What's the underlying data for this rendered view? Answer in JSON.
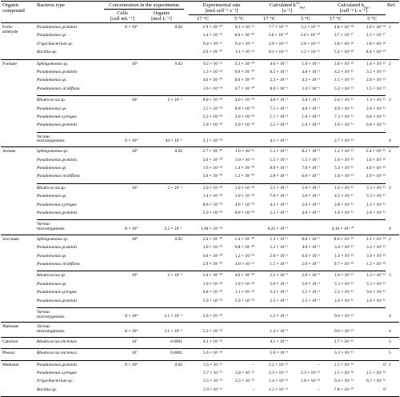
{
  "headers": {
    "organic_compound": [
      "Organic",
      "compound"
    ],
    "bacteria_type": "Bacteria type",
    "concentration": "Concentration in the experiments",
    "cells": [
      "Cells",
      "[cell mL⁻¹]"
    ],
    "organic": [
      "Organic",
      "[mol L⁻¹]"
    ],
    "experimental_rate": [
      "Experimental rate",
      "[mol cell⁻¹ s⁻¹]"
    ],
    "calculated_k1st": [
      "Calculated k",
      "[s⁻¹]"
    ],
    "calculated_k1st_sup": "1st",
    "calculated_k1st_sub": "bact",
    "calculated_kbact": [
      "Calculated k",
      "[cell⁻¹ L s⁻¹]"
    ],
    "calculated_kbact_sub": "bact",
    "ref": "Ref.",
    "t17": "17 °C",
    "t5": "5 °C"
  },
  "rows": [
    {
      "compound": "Form-",
      "compound2": "aldehyde",
      "bact": "Pseudomonas graminis",
      "cells": "8 × 10⁴",
      "org": "0.02",
      "e17": "1.9 × 10⁻²⁰",
      "e5": "8.1 × 10⁻²¹",
      "k17": "7.7 × 10⁻¹¹",
      "k5": "3.2 × 10⁻¹¹",
      "b17": "4.8 × 10⁻¹⁸",
      "b5": "2.0 × 10⁻¹⁸",
      "ref": "1"
    },
    {
      "bact": "Pseudomonas sp.",
      "e17": "1.4 × 10⁻¹⁹",
      "e5": "8.6 × 10⁻²⁰",
      "k17": "5.6 × 10⁻¹⁰",
      "k5": "3.4 × 10⁻¹⁰",
      "b17": "3.7 × 10⁻¹⁷",
      "b5": "2.3 × 10⁻¹⁷"
    },
    {
      "bact": "Frigoribacterium sp.",
      "e17": "6.4 × 10⁻²¹",
      "e5": "6.4 × 10⁻²¹",
      "k17": "2.6 × 10⁻¹¹",
      "k5": "2.6 × 10⁻¹¹",
      "b17": "1.8 × 10⁻¹⁸",
      "b5": "1.8 × 10⁻¹⁸"
    },
    {
      "bact": "Bacillus sp.",
      "e17": "2.0 × 10⁻²⁰",
      "e5": "3.1 × 10⁻²¹",
      "k17": "8.1 × 10⁻¹¹",
      "k5": "1.2 × 10⁻¹¹",
      "b17": "5.4 × 10⁻¹⁸",
      "b5": "8.4 × 10⁻¹⁹"
    },
    {
      "compound": "Formate",
      "bact": "Sphingomonas sp.",
      "cells": "10⁹",
      "org": "0.02",
      "e17": "9.2 × 10⁻²¹",
      "e5": "3.3 × 10⁻²⁰",
      "k17": "4.6 × 10⁻⁷",
      "k5": "1.6 × 10⁻⁶",
      "b17": "3.0 × 10⁻¹⁴",
      "b5": "1.0 × 10⁻¹³",
      "ref": "2"
    },
    {
      "bact": "Pseudomonas graminis",
      "e17": "1.3 × 10⁻¹⁹",
      "e5": "9.6 × 10⁻²⁰",
      "k17": "6.5 × 10⁻⁶",
      "k5": "4.8 × 10⁻⁶",
      "b17": "4.2 × 10⁻¹³",
      "b5": "3.1 × 10⁻¹³"
    },
    {
      "bact": "Pseudomonas sp.",
      "e17": "4.6 × 10⁻²⁰",
      "e5": "8.6 × 10⁻²⁰",
      "k17": "2.3 × 10⁻⁶",
      "k5": "4.3 × 10⁻⁶",
      "b17": "1.5 × 10⁻¹³",
      "b5": "2.8 × 10⁻¹³"
    },
    {
      "bact": "Pseudomonas viridiflava",
      "e17": "1.6 × 10⁻¹⁹",
      "e5": "4.7 × 10⁻²⁰",
      "k17": "8.0 × 10⁻⁶",
      "k5": "2.4 × 10⁻⁶",
      "b17": "5.2 × 10⁻¹³",
      "b5": "1.5 × 10⁻¹³"
    },
    {
      "bact": "Rhodococcus sp.",
      "cells": "10⁶",
      "org": "2 × 10⁻⁵",
      "e17": "8.0 × 10⁻¹⁹",
      "e5": "4.0 × 10⁻¹⁹",
      "k17": "4.0 × 10⁻⁵",
      "k5": "2.0 × 10⁻⁵",
      "b17": "2.6 × 10⁻¹²",
      "b5": "1.3 × 10⁻¹²",
      "ref": "3"
    },
    {
      "bact": "Pseudomonas sp.",
      "e17": "1.5 × 10⁻¹⁸",
      "e5": "8.0 × 10⁻¹⁹",
      "k17": "7.5 × 10⁻⁵",
      "k5": "4.0 × 10⁻⁵",
      "b17": "4.9 × 10⁻¹²",
      "b5": "2.6 × 10⁻¹²"
    },
    {
      "bact": "Pseudomonas syringae",
      "e17": "2.3 × 10⁻¹⁸",
      "e5": "2.0 × 10⁻¹⁸",
      "k17": "1.1 × 10⁻⁴",
      "k5": "1.0 × 10⁻⁴",
      "b17": "7.3 × 10⁻¹²",
      "b5": "6.6 × 10⁻¹²"
    },
    {
      "bact": "Pseudomonas graminis",
      "e17": "5.0 × 10⁻¹⁸",
      "e5": "2.0 × 10⁻¹⁸",
      "k17": "2.5 × 10⁻⁴",
      "k5": "1.0 × 10⁻⁴",
      "b17": "1.6 × 10⁻¹¹",
      "b5": "6.6 × 10⁻¹²"
    },
    {
      "bact": "Various",
      "bact2": "microorganisms",
      "cells": "8 × 10⁴",
      "org": "43 × 10⁻⁶",
      "e17": "2.1 × 10⁻¹⁸",
      "e5": "",
      "k17": "4.1 × 10⁻⁶",
      "k5": "",
      "b17": "2.7 × 10⁻¹³",
      "b5": "",
      "ref": "4"
    },
    {
      "compound": "Acetate",
      "bact": "Sphingomonas sp.",
      "cells": "10⁹",
      "org": "0.02",
      "e17": "2.7 × 10⁻²⁰",
      "e5": "1.6 × 10⁻²²",
      "k17": "1.3 × 10⁻⁶",
      "k5": "8.2 × 10⁻⁹",
      "b17": "1.1 × 10⁻¹³",
      "b5": "5.4 × 10⁻¹⁶",
      "ref": "2"
    },
    {
      "bact": "Pseudomonas graminis",
      "e17": "3.0 × 10⁻²⁰",
      "e5": "3.0 × 10⁻²¹",
      "k17": "1.5 × 10⁻⁶",
      "k5": "1.5 × 10⁻⁷",
      "b17": "1.0 × 10⁻¹³",
      "b5": "1.0 × 10⁻¹⁴"
    },
    {
      "bact": "Pseudomonas sp.",
      "e17": "1.6 × 10⁻¹⁹",
      "e5": "1.4 × 10⁻²⁰",
      "k17": "8.0 × 10⁻⁶",
      "k5": "7.0 × 10⁻⁷",
      "b17": "5.3 × 10⁻¹³",
      "b5": "4.6 × 10⁻¹⁴"
    },
    {
      "bact": "Pseudomonas viridiflava",
      "e17": "5.6 × 10⁻²⁰",
      "e5": "1.2 × 10⁻²⁰",
      "k17": "2.8 × 10⁻⁶",
      "k5": "6.0 × 10⁻⁷",
      "b17": "1.8 × 10⁻¹³",
      "b5": "3.9 × 10⁻¹⁴"
    },
    {
      "bact": "Rhodococcus sp.",
      "cells": "10⁶",
      "org": "2 × 10⁻⁵",
      "e17": "5.0 × 10⁻¹⁹",
      "e5": "1.0 × 10⁻¹⁸",
      "k17": "2.5 × 10⁻⁵",
      "k5": "5.0 × 10⁻⁵",
      "b17": "1.6 × 10⁻¹²",
      "b5": "3.3 × 10⁻¹²",
      "ref": "3"
    },
    {
      "bact": "Pseudomonas sp.",
      "e17": "1.4 × 10⁻¹⁸",
      "e5": "1.0 × 10⁻¹⁸",
      "k17": "7.0 × 10⁻⁵",
      "k5": "5.0 × 10⁻⁵",
      "b17": "4.5 × 10⁻¹²",
      "b5": "3.3 × 10⁻¹²"
    },
    {
      "bact": "Pseudomonas syringae",
      "e17": "8.6 × 10⁻¹⁹",
      "e5": "4.0 × 10⁻¹⁹",
      "k17": "4.3 × 10⁻⁵",
      "k5": "2.0 × 10⁻⁵",
      "b17": "2.8 × 10⁻¹²",
      "b5": "1.3 × 10⁻¹²"
    },
    {
      "bact": "Pseudomonas graminis",
      "e17": "5.0 × 10⁻¹⁹",
      "e5": "8.0 × 10⁻¹⁹",
      "k17": "2.5 × 10⁻⁵",
      "k5": "4.0 × 10⁻⁵",
      "b17": "1.6 × 10⁻¹²",
      "b5": "2.6 × 10⁻¹²"
    },
    {
      "bact": "Various",
      "bact2": "microorganisms",
      "cells": "8 × 10⁴",
      "org": "2.5 × 10⁻⁶",
      "e17": "1.94 × 10⁻¹⁸",
      "e5": "",
      "k17": "6.25 × 10⁻⁵",
      "k5": "",
      "b17": "4.16 × 10⁻¹⁰",
      "b5": "",
      "ref": "4"
    },
    {
      "compound": "Succinate",
      "bact": "Sphingomonas sp.",
      "cells": "10⁹",
      "org": "0.02",
      "e17": "2.6 × 10⁻²⁰",
      "e5": "1.6 × 10⁻²⁰",
      "k17": "1.3 × 10⁻⁶",
      "k5": "8.0 × 10⁻⁷",
      "b17": "8.6 × 10⁻¹⁴",
      "b5": "3.1 × 10⁻¹⁴",
      "ref": "2"
    },
    {
      "bact": "Pseudomonas graminis",
      "e17": "1.0 × 10⁻¹⁹",
      "e5": "9.8 × 10⁻²⁰",
      "k17": "5.2 × 10⁻⁶",
      "k5": "4.9 × 10⁻⁶",
      "b17": "3.4 × 10⁻¹³",
      "b5": "3.2 × 10⁻¹³"
    },
    {
      "bact": "Pseudomonas sp.",
      "e17": "4.0 × 10⁻²⁰",
      "e5": "1.2 × 10⁻¹⁹",
      "k17": "2.0 × 10⁻⁶",
      "k5": "6.0 × 10⁻⁶",
      "b17": "1.3 × 10⁻¹³",
      "b5": "3.9 × 10⁻¹³"
    },
    {
      "bact": "Pseudomonas viridiflava",
      "e17": "2.9 × 10⁻²⁰",
      "e5": "4.0 × 10⁻²¹",
      "k17": "1.5 × 10⁻⁶",
      "k5": "2.0 × 10⁻⁷",
      "b17": "9.7 × 10⁻¹⁴",
      "b5": "1.3 × 10⁻¹⁴"
    },
    {
      "bact": "Rhodococcus sp.",
      "cells": "10⁶",
      "org": "2 × 10⁻⁵",
      "e17": "5.0 × 10⁻²⁰",
      "e5": "4.0 × 10⁻²⁰",
      "k17": "2.5 × 10⁻⁶",
      "k5": "2.0 × 10⁻⁶",
      "b17": "1.6 × 10⁻¹³",
      "b5": "1.3 × 10⁻¹³",
      "ref": "3"
    },
    {
      "bact": "Pseudomonas sp.",
      "e17": "1.0 × 10⁻¹⁸",
      "e5": "1.0 × 10⁻¹⁸",
      "k17": "5.0 × 10⁻⁵",
      "k5": "5.0 × 10⁻⁵",
      "b17": "3.3 × 10⁻¹²",
      "b5": "3.3 × 10⁻¹²"
    },
    {
      "bact": "Pseudomonas syringae",
      "e17": "6.8 × 10⁻¹⁹",
      "e5": "1.1 × 10⁻¹⁸",
      "k17": "3.4 × 10⁻⁵",
      "k5": "5.5 × 10⁻⁵",
      "b17": "2.2 × 10⁻¹²",
      "b5": "3.6 × 10⁻¹²"
    },
    {
      "bact": "Pseudomonas graminis",
      "e17": "5.0 × 10⁻¹⁹",
      "e5": "5.0 × 10⁻¹⁹",
      "k17": "2.5 × 10⁻⁵",
      "k5": "2.5 × 10⁻⁵",
      "b17": "1.6 × 10⁻¹²",
      "b5": "1.6 × 10⁻¹²"
    },
    {
      "bact": "Various",
      "bact2": "microorganisms",
      "cells": "8 × 10⁴",
      "org": "3.1 × 10⁻⁶",
      "e17": "5.6 × 10⁻¹⁹",
      "e5": "",
      "k17": "1.5 × 10⁻⁵",
      "k5": "",
      "b17": "9.6 × 10⁻¹³",
      "b5": "",
      "ref": "4"
    },
    {
      "compound": "Malonate",
      "bact": "Various",
      "bact2": "microorganisms",
      "cells": "8 × 10⁴",
      "org": "3.1 × 10⁻⁶",
      "e17": "5.2 × 10⁻¹⁹",
      "e5": "",
      "k17": "1.4 × 10⁻⁵",
      "k5": "",
      "b17": "9.0 × 10⁻¹³",
      "b5": "",
      "ref": "4"
    },
    {
      "compound": "Catechol",
      "bact": "Rhodococcus enclensis",
      "cells": "10⁷",
      "org": "0.0001",
      "e17": "4.1 × 10⁻¹⁹",
      "e5": "",
      "k17": "4.1 × 10⁻⁶",
      "k5": "",
      "b17": "2.7 × 10⁻¹⁵",
      "b5": "",
      "ref": "5"
    },
    {
      "compound": "Phenol",
      "bact": "Rhodococcus enclensis",
      "cells": "10⁷",
      "org": "0.0001",
      "e17": "5.0 × 10⁻¹⁸",
      "e5": "",
      "k17": "5.0 × 10⁻⁴",
      "k5": "",
      "b17": "3.3 × 10⁻¹¹",
      "b5": "",
      "ref": "5"
    },
    {
      "compound": "Methanol",
      "bact": "Pseudomonas graminis",
      "cells": "8 × 10⁴",
      "org": "0.02",
      "e17": "5.6 × 10⁻²²",
      "e5": "–",
      "k17": "2.2 × 10⁻¹²",
      "k5": "–",
      "b17": "1.5 × 10⁻¹⁹",
      "b5": "0",
      "ref": "1"
    },
    {
      "bact": "Pseudomonas syringae",
      "e17": "5.7 × 10⁻²¹",
      "e5": "5.8 × 10⁻²²",
      "k17": "2.3 × 10⁻¹¹",
      "k5": "2.3 × 10⁻¹²",
      "b17": "1.5 × 10⁻¹⁸",
      "b5": "1.5 × 10⁻¹⁹"
    },
    {
      "bact": "Frigoribacterium sp.",
      "e17": "3.5 × 10⁻²³",
      "e5": "2.5 × 10⁻²³",
      "k17": "1.4 × 10⁻¹³",
      "k5": "1.0 × 10⁻¹³",
      "b17": "9.4 × 10⁻²¹",
      "b5": "6.7 × 10⁻²¹"
    },
    {
      "bact": "Bacillus sp.",
      "e17": "2.9 × 10⁻²¹",
      "e5": "–",
      "k17": "1.2 × 10⁻¹¹",
      "k5": "–",
      "b17": "7.8 × 10⁻¹⁹",
      "b5": "0"
    }
  ]
}
